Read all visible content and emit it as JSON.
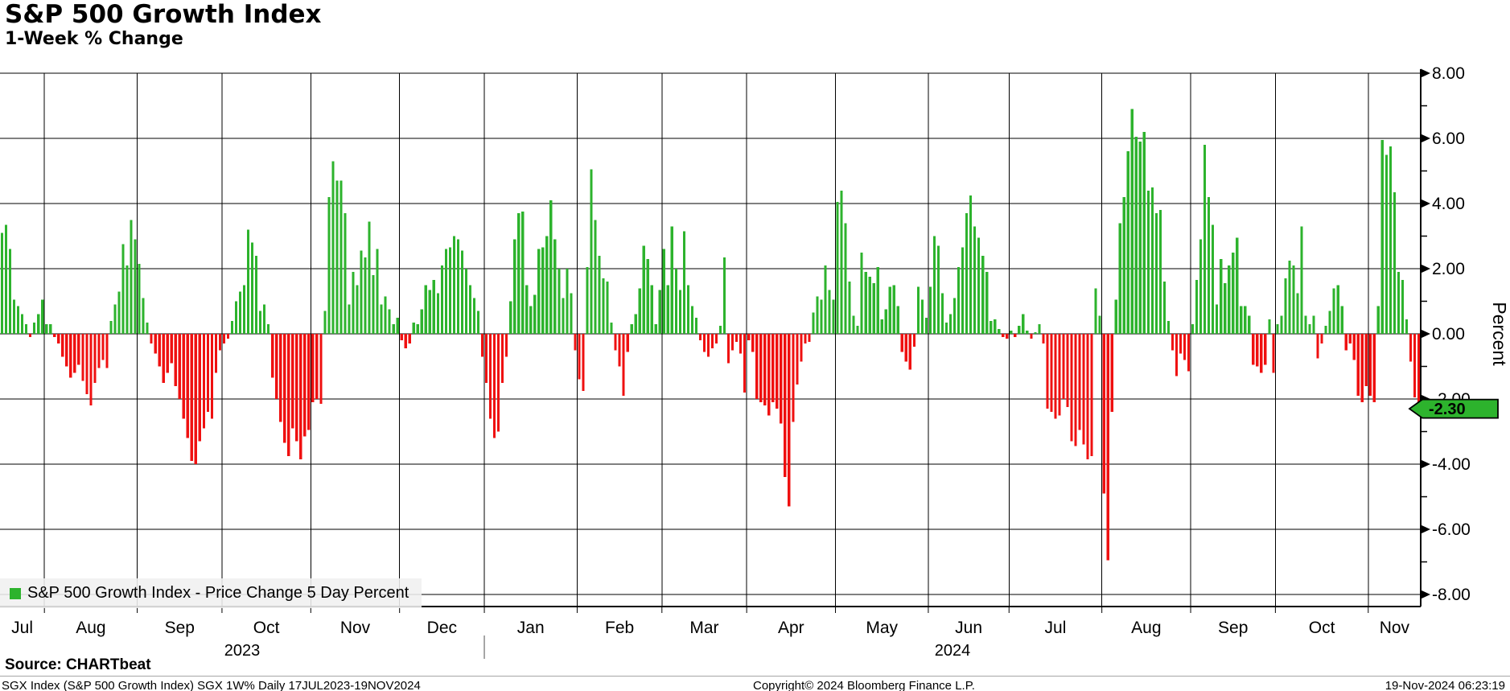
{
  "header": {
    "title": "S&P 500 Growth Index",
    "subtitle": "1-Week % Change"
  },
  "legend": {
    "swatch_color": "#2db32d",
    "label": "S&P 500 Growth Index - Price Change 5 Day Percent"
  },
  "y_axis": {
    "title": "Percent",
    "labels": [
      "8.00",
      "6.00",
      "4.00",
      "2.00",
      "0.00",
      "-2.00",
      "-4.00",
      "-6.00",
      "-8.00"
    ]
  },
  "x_axis": {
    "year_labels": [
      "2023",
      "2024"
    ]
  },
  "last_value_badge": {
    "text": "-2.30",
    "value": -2.3,
    "fill": "#2db32d"
  },
  "footer": {
    "source": "Source: CHARTbeat",
    "ticker_line": "SGX Index (S&P 500 Growth Index) SGX 1W%  Daily 17JUL2023-19NOV2024",
    "copyright": "Copyright© 2024 Bloomberg Finance L.P.",
    "timestamp": "19-Nov-2024 06:23:19"
  },
  "chart_data": {
    "type": "bar",
    "title": "S&P 500 Growth Index",
    "subtitle": "1-Week % Change",
    "series_name": "S&P 500 Growth Index - Price Change 5 Day Percent",
    "unit": "percent",
    "frequency": "daily (weekdays)",
    "date_range": "17JUL2023-19NOV2024",
    "ylim": [
      -8,
      8
    ],
    "y_major_step": 2,
    "y_minor_step": 1,
    "grid": true,
    "legend_position": "bottom-left",
    "colors": {
      "positive": "#2db32d",
      "negative": "#ef1010"
    },
    "months": [
      {
        "label": "Jul",
        "year": "2023",
        "values": [
          3.1,
          3.35,
          2.6,
          1.05,
          0.85,
          0.6,
          0.3,
          -0.1,
          0.35,
          0.6,
          1.05
        ]
      },
      {
        "label": "Aug",
        "year": "2023",
        "values": [
          0.3,
          0.3,
          -0.1,
          -0.3,
          -0.7,
          -1.0,
          -1.35,
          -1.2,
          -0.95,
          -1.45,
          -1.85,
          -2.2,
          -1.5,
          -1.05,
          -0.8,
          -1.05,
          0.4,
          0.9,
          1.3,
          2.75,
          2.1,
          3.5,
          2.9
        ]
      },
      {
        "label": "Sep",
        "year": "2023",
        "values": [
          2.15,
          1.1,
          0.35,
          -0.3,
          -0.6,
          -1.0,
          -1.5,
          -1.2,
          -0.9,
          -1.6,
          -2.0,
          -2.6,
          -3.2,
          -3.9,
          -4.0,
          -3.3,
          -2.9,
          -2.4,
          -2.6,
          -1.2,
          -0.5
        ]
      },
      {
        "label": "Oct",
        "year": "2023",
        "values": [
          -0.3,
          -0.15,
          0.4,
          1.0,
          1.3,
          1.5,
          3.2,
          2.8,
          2.4,
          0.7,
          0.9,
          0.3,
          -1.35,
          -2.0,
          -2.7,
          -3.35,
          -3.75,
          -2.9,
          -3.3,
          -3.85,
          -3.15,
          -2.95
        ]
      },
      {
        "label": "Nov",
        "year": "2023",
        "values": [
          -2.1,
          -2.0,
          -2.15,
          0.7,
          4.2,
          5.3,
          4.7,
          4.7,
          3.7,
          0.9,
          1.9,
          1.5,
          2.55,
          2.35,
          3.45,
          1.8,
          2.6,
          0.9,
          1.15,
          0.75,
          0.3,
          0.5
        ]
      },
      {
        "label": "Dec",
        "year": "2023",
        "values": [
          -0.2,
          -0.45,
          -0.3,
          0.35,
          0.3,
          0.75,
          1.5,
          1.35,
          1.65,
          1.25,
          2.1,
          2.6,
          2.65,
          3.0,
          2.9,
          2.55,
          2.0,
          1.5,
          1.1,
          0.7,
          -0.7
        ]
      },
      {
        "label": "Jan",
        "year": "2024",
        "values": [
          -1.5,
          -2.6,
          -3.2,
          -3.0,
          -1.5,
          -0.7,
          1.0,
          2.9,
          3.7,
          3.75,
          1.5,
          0.85,
          1.2,
          2.6,
          2.65,
          3.0,
          4.1,
          2.9,
          2.0,
          1.1,
          2.0,
          1.25,
          -0.5
        ]
      },
      {
        "label": "Feb",
        "year": "2024",
        "values": [
          -1.4,
          -1.75,
          2.05,
          5.05,
          3.5,
          2.4,
          1.7,
          1.6,
          0.35,
          -0.5,
          -1.0,
          -1.9,
          -0.55,
          0.3,
          0.6,
          1.4,
          2.7,
          2.3,
          1.5,
          0.3,
          1.35
        ]
      },
      {
        "label": "Mar",
        "year": "2024",
        "values": [
          2.6,
          1.5,
          3.3,
          2.0,
          1.35,
          3.15,
          1.5,
          0.85,
          0.5,
          -0.2,
          -0.55,
          -0.7,
          -0.45,
          -0.3,
          0.25,
          2.35,
          -0.9,
          -0.5,
          -0.25,
          -0.6,
          -1.8
        ]
      },
      {
        "label": "Apr",
        "year": "2024",
        "values": [
          -0.2,
          -0.55,
          -2.0,
          -2.1,
          -2.2,
          -2.5,
          -2.1,
          -2.3,
          -2.75,
          -4.4,
          -5.3,
          -2.7,
          -1.55,
          -0.85,
          -0.3,
          -0.25,
          0.65,
          1.15,
          1.05,
          2.1,
          1.35,
          1.05
        ]
      },
      {
        "label": "May",
        "year": "2024",
        "values": [
          4.05,
          4.4,
          3.4,
          1.6,
          0.55,
          0.25,
          2.5,
          1.9,
          1.75,
          1.55,
          2.05,
          0.45,
          0.75,
          1.45,
          1.5,
          0.85,
          -0.55,
          -0.85,
          -1.1,
          -0.4,
          1.45,
          1.05,
          0.5
        ]
      },
      {
        "label": "Jun",
        "year": "2024",
        "values": [
          1.45,
          3.0,
          2.7,
          1.25,
          0.35,
          0.6,
          1.1,
          2.05,
          2.65,
          3.7,
          4.25,
          3.3,
          2.95,
          2.4,
          1.9,
          0.4,
          0.45,
          0.15,
          -0.1,
          -0.15
        ]
      },
      {
        "label": "Jul",
        "year": "2024",
        "values": [
          0.1,
          -0.1,
          0.25,
          0.6,
          0.1,
          -0.15,
          0.05,
          0.3,
          -0.3,
          -2.3,
          -2.4,
          -2.6,
          -2.5,
          -2.0,
          -2.25,
          -3.3,
          -3.45,
          -2.95,
          -3.4,
          -3.85,
          -3.75,
          1.4,
          0.55
        ]
      },
      {
        "label": "Aug",
        "year": "2024",
        "values": [
          -4.9,
          -6.95,
          -2.4,
          1.05,
          3.4,
          4.2,
          5.6,
          6.9,
          6.05,
          5.9,
          6.2,
          4.4,
          4.5,
          3.7,
          3.8,
          1.6,
          0.4,
          -0.5,
          -1.3,
          -0.6,
          -0.8,
          -1.15
        ]
      },
      {
        "label": "Sep",
        "year": "2024",
        "values": [
          0.3,
          1.65,
          2.9,
          5.8,
          4.2,
          3.35,
          0.9,
          2.3,
          1.55,
          2.1,
          2.5,
          2.95,
          0.85,
          0.85,
          0.55,
          -0.95,
          -1.0,
          -1.2,
          -0.95,
          0.45,
          -1.2
        ]
      },
      {
        "label": "Oct",
        "year": "2024",
        "values": [
          0.3,
          0.55,
          1.7,
          2.25,
          2.1,
          1.25,
          3.3,
          0.55,
          0.3,
          0.55,
          -0.75,
          -0.3,
          0.25,
          0.7,
          1.4,
          1.5,
          0.85,
          -0.5,
          -0.3,
          -0.8,
          -1.9,
          -2.1,
          -1.6
        ]
      },
      {
        "label": "Nov",
        "year": "2024",
        "values": [
          -1.9,
          -2.1,
          0.85,
          5.95,
          5.5,
          5.75,
          4.35,
          1.9,
          1.65,
          0.45,
          -0.85,
          -1.95,
          -2.3
        ]
      }
    ]
  }
}
